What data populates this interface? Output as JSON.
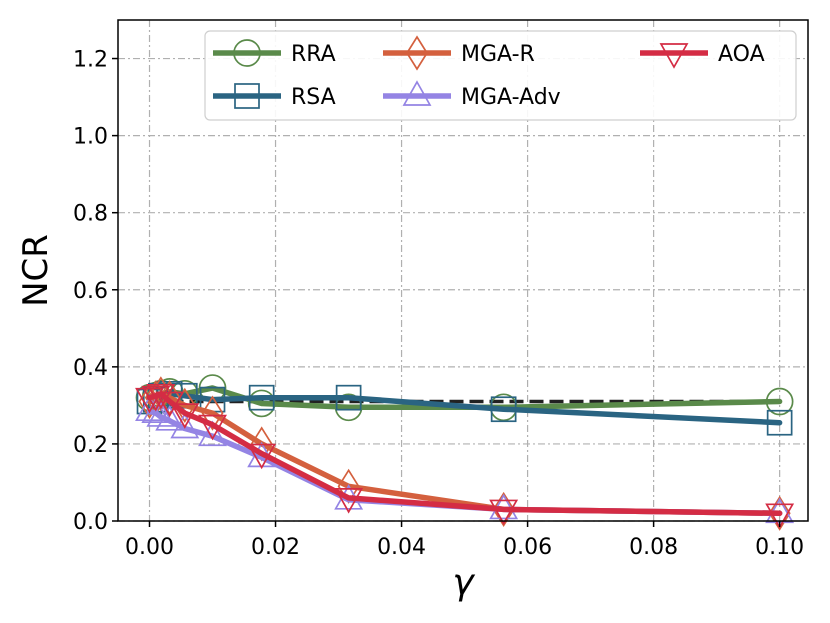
{
  "chart_data": {
    "type": "line",
    "title": "",
    "xlabel": "γ",
    "ylabel": "NCR",
    "xlim": [
      -0.005,
      0.1045
    ],
    "ylim": [
      0.0,
      1.3
    ],
    "xticks": [
      0.0,
      0.02,
      0.04,
      0.06,
      0.08,
      0.1
    ],
    "xtick_labels": [
      "0.00",
      "0.02",
      "0.04",
      "0.06",
      "0.08",
      "0.10"
    ],
    "yticks": [
      0.0,
      0.2,
      0.4,
      0.6,
      0.8,
      1.0,
      1.2
    ],
    "ytick_labels": [
      "0.0",
      "0.2",
      "0.4",
      "0.6",
      "0.8",
      "1.0",
      "1.2"
    ],
    "grid": true,
    "legend_position": "top-right",
    "reference_line": {
      "y": 0.31,
      "style": "dashed",
      "color": "#222222"
    },
    "x": [
      0.0,
      0.001,
      0.0018,
      0.0032,
      0.0056,
      0.01,
      0.0178,
      0.0316,
      0.0562,
      0.1
    ],
    "series": [
      {
        "name": "RRA",
        "color": "#5a8a4a",
        "marker": "circle",
        "values": [
          0.32,
          0.325,
          0.33,
          0.335,
          0.33,
          0.345,
          0.305,
          0.295,
          0.295,
          0.31
        ]
      },
      {
        "name": "RSA",
        "color": "#2a6482",
        "marker": "square",
        "values": [
          0.31,
          0.315,
          0.325,
          0.33,
          0.325,
          0.315,
          0.32,
          0.32,
          0.29,
          0.255
        ]
      },
      {
        "name": "MGA-R",
        "color": "#d4603e",
        "marker": "diamond",
        "values": [
          0.31,
          0.32,
          0.33,
          0.32,
          0.3,
          0.28,
          0.2,
          0.09,
          0.03,
          0.02
        ]
      },
      {
        "name": "MGA-Adv",
        "color": "#9484e4",
        "marker": "triangle-up",
        "values": [
          0.285,
          0.28,
          0.27,
          0.26,
          0.24,
          0.22,
          0.165,
          0.055,
          0.03,
          0.02
        ]
      },
      {
        "name": "AOA",
        "color": "#d42c44",
        "marker": "triangle-down",
        "values": [
          0.32,
          0.325,
          0.33,
          0.31,
          0.28,
          0.25,
          0.175,
          0.06,
          0.03,
          0.02
        ]
      }
    ]
  }
}
